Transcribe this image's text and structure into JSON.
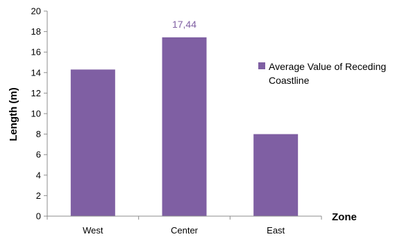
{
  "chart_data": {
    "type": "bar",
    "categories": [
      "West",
      "Center",
      "East"
    ],
    "series": [
      {
        "name": "Average Value of Receding Coastline",
        "values": [
          14.3,
          17.44,
          8.0
        ],
        "data_labels": [
          "",
          "17,44",
          ""
        ],
        "color": "#7f5fa3"
      }
    ],
    "xlabel": "Zone",
    "ylabel": "Length (m)",
    "ylim": [
      0,
      20
    ],
    "yticks": [
      0,
      2,
      4,
      6,
      8,
      10,
      12,
      14,
      16,
      18,
      20
    ],
    "grid": false,
    "legend_position": "right"
  }
}
